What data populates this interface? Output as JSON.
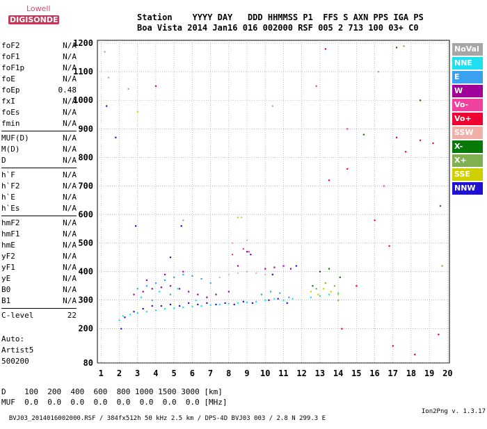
{
  "logo": {
    "top": "Lowell",
    "bottom": "DIGISONDE"
  },
  "header": {
    "line1": "Station    YYYY DAY   DDD HHMMSS P1  FFS S AXN PPS IGA PS",
    "line2": "Boa Vista 2014 Jan16 016 002000 RSF 005 2 713 100 03+ C0"
  },
  "params": [
    {
      "k": "foF2",
      "v": "N/A"
    },
    {
      "k": "foF1",
      "v": "N/A"
    },
    {
      "k": "foF1p",
      "v": "N/A"
    },
    {
      "k": "foE",
      "v": "N/A"
    },
    {
      "k": "foEp",
      "v": "0.48"
    },
    {
      "k": "fxI",
      "v": "N/A"
    },
    {
      "k": "foEs",
      "v": "N/A"
    },
    {
      "k": "fmin",
      "v": "N/A"
    },
    {
      "k": "MUF(D)",
      "v": "N/A"
    },
    {
      "k": "M(D)",
      "v": "N/A"
    },
    {
      "k": "D",
      "v": "N/A"
    },
    {
      "k": "h`F",
      "v": "N/A"
    },
    {
      "k": "h`F2",
      "v": "N/A"
    },
    {
      "k": "h`E",
      "v": "N/A"
    },
    {
      "k": "h`Es",
      "v": "N/A"
    },
    {
      "k": "hmF2",
      "v": "N/A"
    },
    {
      "k": "hmF1",
      "v": "N/A"
    },
    {
      "k": "hmE",
      "v": "N/A"
    },
    {
      "k": "yF2",
      "v": "N/A"
    },
    {
      "k": "yF1",
      "v": "N/A"
    },
    {
      "k": "yE",
      "v": "N/A"
    },
    {
      "k": "B0",
      "v": "N/A"
    },
    {
      "k": "B1",
      "v": "N/A"
    },
    {
      "k": "C-level",
      "v": "22"
    }
  ],
  "auto": {
    "line1": "Auto:",
    "line2": "Artist5",
    "line3": "500200"
  },
  "bottom": {
    "d_row": "D    100  200  400  600  800 1000 1500 3000 [km]",
    "muf_row": "MUF  0.0  0.0  0.0  0.0  0.0  0.0  0.0  0.0 [MHz]"
  },
  "footer": {
    "left": "BVJ03_2014016002000.RSF / 384fx512h 50 kHz 2.5 km / DPS-4D BVJ03 003 / 2.8 N 299.3 E",
    "right": "Ion2Png v. 1.3.17"
  },
  "legend": [
    {
      "label": "NoVal",
      "color": "#a6a6a6"
    },
    {
      "label": "NNE",
      "color": "#1ee0f0"
    },
    {
      "label": "E",
      "color": "#3aa0f0"
    },
    {
      "label": "W",
      "color": "#a0009a"
    },
    {
      "label": "Vo-",
      "color": "#f040a0"
    },
    {
      "label": "Vo+",
      "color": "#f00030"
    },
    {
      "label": "SSW",
      "color": "#f0b0a8"
    },
    {
      "label": "X-",
      "color": "#087808"
    },
    {
      "label": "X+",
      "color": "#80b050"
    },
    {
      "label": "SSE",
      "color": "#d0d000"
    },
    {
      "label": "NNW",
      "color": "#2010d0"
    }
  ],
  "chart_data": {
    "type": "scatter",
    "xlim": [
      0.8,
      20.1
    ],
    "ylim": [
      80,
      1210
    ],
    "x_ticks": [
      1,
      2,
      3,
      4,
      5,
      6,
      7,
      8,
      9,
      10,
      11,
      12,
      13,
      14,
      15,
      16,
      17,
      18,
      19,
      20
    ],
    "y_ticks": [
      80,
      200,
      300,
      400,
      500,
      600,
      700,
      800,
      900,
      1000,
      1100,
      1200
    ],
    "grid": true,
    "series": [
      {
        "name": "NNE",
        "color": "#1ee0f0",
        "points": [
          [
            2.2,
            245
          ],
          [
            2.6,
            250
          ],
          [
            3.0,
            255
          ],
          [
            3.5,
            260
          ],
          [
            4.0,
            265
          ],
          [
            4.5,
            270
          ],
          [
            5.0,
            272
          ],
          [
            5.5,
            275
          ],
          [
            6.0,
            278
          ],
          [
            6.5,
            280
          ],
          [
            7.0,
            283
          ],
          [
            7.5,
            285
          ],
          [
            8.0,
            288
          ],
          [
            8.5,
            290
          ],
          [
            9.0,
            292
          ],
          [
            9.5,
            295
          ],
          [
            10.0,
            300
          ],
          [
            10.5,
            305
          ],
          [
            11.0,
            300
          ],
          [
            11.5,
            305
          ],
          [
            12.5,
            310
          ],
          [
            13.0,
            315
          ],
          [
            13.5,
            320
          ],
          [
            14.0,
            325
          ],
          [
            3.2,
            310
          ],
          [
            4.2,
            330
          ],
          [
            5.2,
            340
          ],
          [
            6.2,
            300
          ],
          [
            2.0,
            230
          ]
        ]
      },
      {
        "name": "E",
        "color": "#3aa0f0",
        "points": [
          [
            3.0,
            340
          ],
          [
            3.5,
            350
          ],
          [
            4.0,
            360
          ],
          [
            4.5,
            370
          ],
          [
            5.0,
            380
          ],
          [
            5.5,
            390
          ],
          [
            6.0,
            385
          ],
          [
            6.5,
            375
          ],
          [
            7.0,
            360
          ],
          [
            9.8,
            320
          ],
          [
            10.3,
            330
          ],
          [
            10.8,
            325
          ],
          [
            11.3,
            310
          ],
          [
            4.8,
            320
          ],
          [
            3.8,
            300
          ]
        ]
      },
      {
        "name": "W",
        "color": "#a0009a",
        "points": [
          [
            2.8,
            320
          ],
          [
            3.3,
            330
          ],
          [
            3.8,
            340
          ],
          [
            4.3,
            345
          ],
          [
            4.8,
            350
          ],
          [
            5.3,
            340
          ],
          [
            5.8,
            330
          ],
          [
            6.3,
            320
          ],
          [
            6.8,
            310
          ],
          [
            7.3,
            320
          ],
          [
            8.0,
            330
          ],
          [
            8.5,
            420
          ],
          [
            9.0,
            470
          ],
          [
            9.2,
            460
          ],
          [
            10.0,
            410
          ],
          [
            10.5,
            415
          ],
          [
            11.0,
            420
          ],
          [
            11.4,
            410
          ],
          [
            3.5,
            370
          ],
          [
            4.5,
            390
          ],
          [
            5.5,
            400
          ]
        ]
      },
      {
        "name": "Vo-",
        "color": "#f040a0",
        "points": [
          [
            8.2,
            460
          ],
          [
            8.8,
            480
          ],
          [
            9.1,
            470
          ],
          [
            12.8,
            1050
          ],
          [
            14.5,
            900
          ],
          [
            16.5,
            700
          ]
        ]
      },
      {
        "name": "Vo+",
        "color": "#f00030",
        "points": [
          [
            13.3,
            1180
          ],
          [
            13.5,
            720
          ],
          [
            14.5,
            760
          ],
          [
            15.0,
            350
          ],
          [
            16.0,
            580
          ],
          [
            16.8,
            490
          ],
          [
            17.2,
            870
          ],
          [
            17.7,
            820
          ],
          [
            18.5,
            860
          ],
          [
            19.2,
            850
          ],
          [
            19.5,
            180
          ],
          [
            17.0,
            140
          ],
          [
            18.2,
            110
          ],
          [
            14.2,
            200
          ],
          [
            4.0,
            1050
          ]
        ]
      },
      {
        "name": "SSW",
        "color": "#f0b0a8",
        "points": [
          [
            7.5,
            380
          ],
          [
            8.0,
            390
          ],
          [
            8.5,
            395
          ],
          [
            9.0,
            400
          ],
          [
            9.5,
            395
          ],
          [
            10.0,
            390
          ],
          [
            8.2,
            500
          ],
          [
            9.0,
            510
          ],
          [
            8.7,
            590
          ]
        ]
      },
      {
        "name": "X-",
        "color": "#087808",
        "points": [
          [
            12.6,
            350
          ],
          [
            13.0,
            400
          ],
          [
            13.5,
            410
          ],
          [
            14.1,
            380
          ],
          [
            17.2,
            1185
          ],
          [
            18.5,
            1000
          ],
          [
            19.6,
            630
          ],
          [
            15.4,
            880
          ]
        ]
      },
      {
        "name": "X+",
        "color": "#80b050",
        "points": [
          [
            12.8,
            340
          ],
          [
            13.3,
            360
          ],
          [
            13.8,
            350
          ],
          [
            14.0,
            300
          ],
          [
            17.6,
            1190
          ],
          [
            19.7,
            420
          ]
        ]
      },
      {
        "name": "SSE",
        "color": "#d0d000",
        "points": [
          [
            12.5,
            330
          ],
          [
            12.9,
            320
          ],
          [
            13.2,
            340
          ],
          [
            13.6,
            330
          ],
          [
            14.0,
            320
          ],
          [
            3.0,
            960
          ],
          [
            8.5,
            590
          ]
        ]
      },
      {
        "name": "NNW",
        "color": "#2010d0",
        "points": [
          [
            2.3,
            240
          ],
          [
            2.8,
            260
          ],
          [
            3.3,
            270
          ],
          [
            3.8,
            280
          ],
          [
            4.3,
            280
          ],
          [
            4.8,
            285
          ],
          [
            5.3,
            280
          ],
          [
            5.8,
            290
          ],
          [
            6.3,
            285
          ],
          [
            6.8,
            290
          ],
          [
            7.3,
            285
          ],
          [
            7.8,
            290
          ],
          [
            8.3,
            285
          ],
          [
            8.8,
            295
          ],
          [
            9.3,
            290
          ],
          [
            10.2,
            300
          ],
          [
            10.7,
            305
          ],
          [
            11.2,
            290
          ],
          [
            2.1,
            200
          ],
          [
            1.8,
            870
          ],
          [
            1.3,
            980
          ],
          [
            2.9,
            560
          ],
          [
            4.8,
            450
          ],
          [
            5.4,
            560
          ],
          [
            10.4,
            390
          ],
          [
            11.7,
            420
          ]
        ]
      },
      {
        "name": "NoVal",
        "color": "#a6a6a6",
        "points": [
          [
            1.2,
            1170
          ],
          [
            1.4,
            1080
          ],
          [
            2.5,
            1040
          ],
          [
            5.5,
            580
          ],
          [
            10.4,
            980
          ],
          [
            16.2,
            1100
          ]
        ]
      }
    ]
  }
}
